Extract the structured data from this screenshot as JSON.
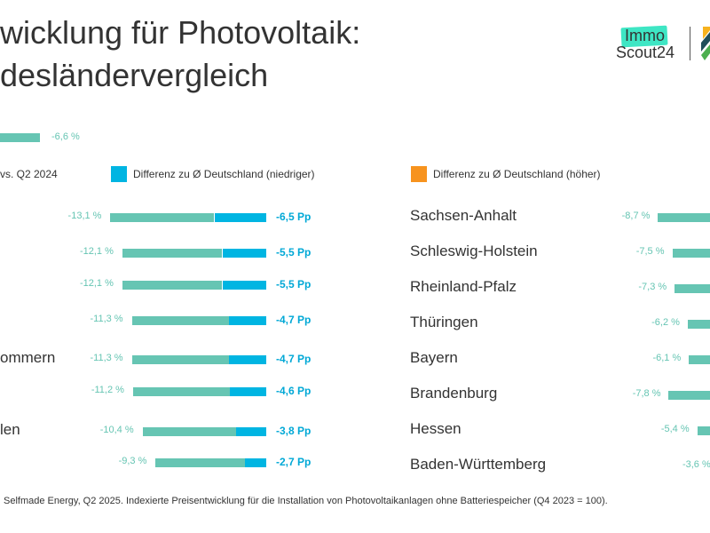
{
  "title": [
    "wicklung für Photovoltaik:",
    "desländervergleich"
  ],
  "logo": {
    "text1": "Immo",
    "text2": "Scout24",
    "accent": "#3ee6c4"
  },
  "colors": {
    "teal": "#66c5b3",
    "blue": "#00b5e2",
    "orange": "#f7931e"
  },
  "chart_data": {
    "type": "bar",
    "orientation": "horizontal",
    "germany_average": {
      "value": -6.6,
      "label": "-6,6 %"
    },
    "legend": [
      {
        "label": "vs. Q2 2024",
        "color": "#66c5b3"
      },
      {
        "label": "Differenz zu Ø Deutschland (niedriger)",
        "color": "#00b5e2"
      },
      {
        "label": "Differenz zu Ø Deutschland (höher)",
        "color": "#f7931e"
      }
    ],
    "left": [
      {
        "name": "",
        "value": -13.1,
        "value_label": "-13,1 %",
        "diff": -6.5,
        "diff_label": "-6,5 Pp"
      },
      {
        "name": "",
        "value": -12.1,
        "value_label": "-12,1 %",
        "diff": -5.5,
        "diff_label": "-5,5 Pp"
      },
      {
        "name": "",
        "value": -12.1,
        "value_label": "-12,1 %",
        "diff": -5.5,
        "diff_label": "-5,5 Pp"
      },
      {
        "name": "",
        "value": -11.3,
        "value_label": "-11,3 %",
        "diff": -4.7,
        "diff_label": "-4,7 Pp"
      },
      {
        "name": "ommern",
        "value": -11.3,
        "value_label": "-11,3 %",
        "diff": -4.7,
        "diff_label": "-4,7 Pp"
      },
      {
        "name": "",
        "value": -11.2,
        "value_label": "-11,2 %",
        "diff": -4.6,
        "diff_label": "-4,6 Pp"
      },
      {
        "name": "len",
        "value": -10.4,
        "value_label": "-10,4 %",
        "diff": -3.8,
        "diff_label": "-3,8 Pp"
      },
      {
        "name": "",
        "value": -9.3,
        "value_label": "-9,3 %",
        "diff": -2.7,
        "diff_label": "-2,7 Pp"
      }
    ],
    "right": [
      {
        "name": "Sachsen-Anhalt",
        "value": -8.7,
        "value_label": "-8,7 %"
      },
      {
        "name": "Schleswig-Holstein",
        "value": -7.5,
        "value_label": "-7,5 %"
      },
      {
        "name": "Rheinland-Pfalz",
        "value": -7.3,
        "value_label": "-7,3 %"
      },
      {
        "name": "Thüringen",
        "value": -6.2,
        "value_label": "-6,2 %"
      },
      {
        "name": "Bayern",
        "value": -6.1,
        "value_label": "-6,1 %"
      },
      {
        "name": "Brandenburg",
        "value": -7.8,
        "value_label": "-7,8 %"
      },
      {
        "name": "Hessen",
        "value": -5.4,
        "value_label": "-5,4 %"
      },
      {
        "name": "Baden-Württemberg",
        "value": -3.6,
        "value_label": "-3,6 %"
      }
    ]
  },
  "footnote": "Selfmade Energy, Q2 2025. Indexierte Preisentwicklung für die Installation von Photovoltaikanlagen ohne Batteriespeicher (Q4 2023 = 100)."
}
